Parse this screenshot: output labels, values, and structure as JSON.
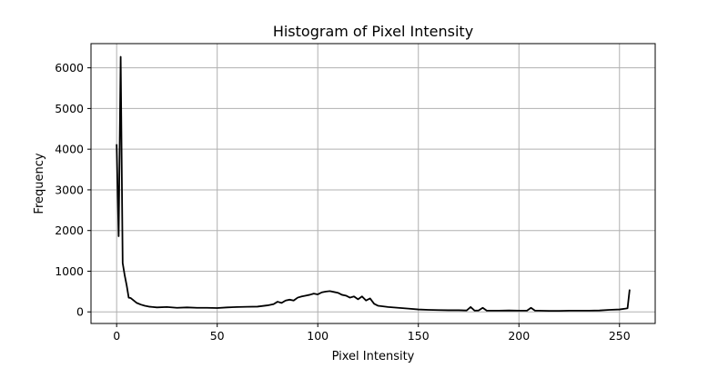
{
  "chart_data": {
    "type": "line",
    "title": "Histogram of Pixel Intensity",
    "xlabel": "Pixel Intensity",
    "ylabel": "Frequency",
    "xlim": [
      -12.75,
      267.75
    ],
    "ylim": [
      -285,
      6595
    ],
    "grid": true,
    "line_color": "#000000",
    "grid_color": "#b0b0b0",
    "x_ticks": [
      0,
      50,
      100,
      150,
      200,
      250
    ],
    "y_ticks": [
      0,
      1000,
      2000,
      3000,
      4000,
      5000,
      6000
    ],
    "series": [
      {
        "x": [
          0,
          1,
          2,
          3,
          4,
          5,
          6,
          7,
          8,
          10,
          12,
          14,
          16,
          18,
          20,
          25,
          30,
          35,
          40,
          45,
          50,
          55,
          60,
          65,
          70,
          75,
          78,
          80,
          82,
          84,
          86,
          88,
          90,
          92,
          94,
          96,
          98,
          100,
          102,
          104,
          106,
          108,
          110,
          112,
          114,
          116,
          118,
          120,
          122,
          124,
          126,
          128,
          130,
          135,
          140,
          145,
          150,
          155,
          160,
          165,
          170,
          174,
          176,
          178,
          180,
          182,
          184,
          186,
          190,
          195,
          200,
          204,
          206,
          208,
          210,
          215,
          220,
          225,
          230,
          235,
          240,
          245,
          250,
          253,
          254,
          255
        ],
        "y": [
          4100,
          1860,
          6270,
          1200,
          900,
          650,
          350,
          340,
          300,
          220,
          180,
          150,
          130,
          120,
          110,
          120,
          100,
          110,
          100,
          100,
          95,
          110,
          120,
          125,
          130,
          160,
          190,
          250,
          220,
          280,
          300,
          280,
          350,
          380,
          400,
          420,
          450,
          430,
          480,
          500,
          510,
          490,
          470,
          420,
          400,
          350,
          380,
          310,
          380,
          280,
          330,
          200,
          150,
          120,
          100,
          80,
          60,
          50,
          45,
          40,
          40,
          35,
          120,
          30,
          35,
          100,
          30,
          30,
          30,
          35,
          30,
          30,
          100,
          30,
          30,
          25,
          25,
          30,
          30,
          30,
          35,
          50,
          60,
          80,
          90,
          530
        ]
      }
    ]
  }
}
